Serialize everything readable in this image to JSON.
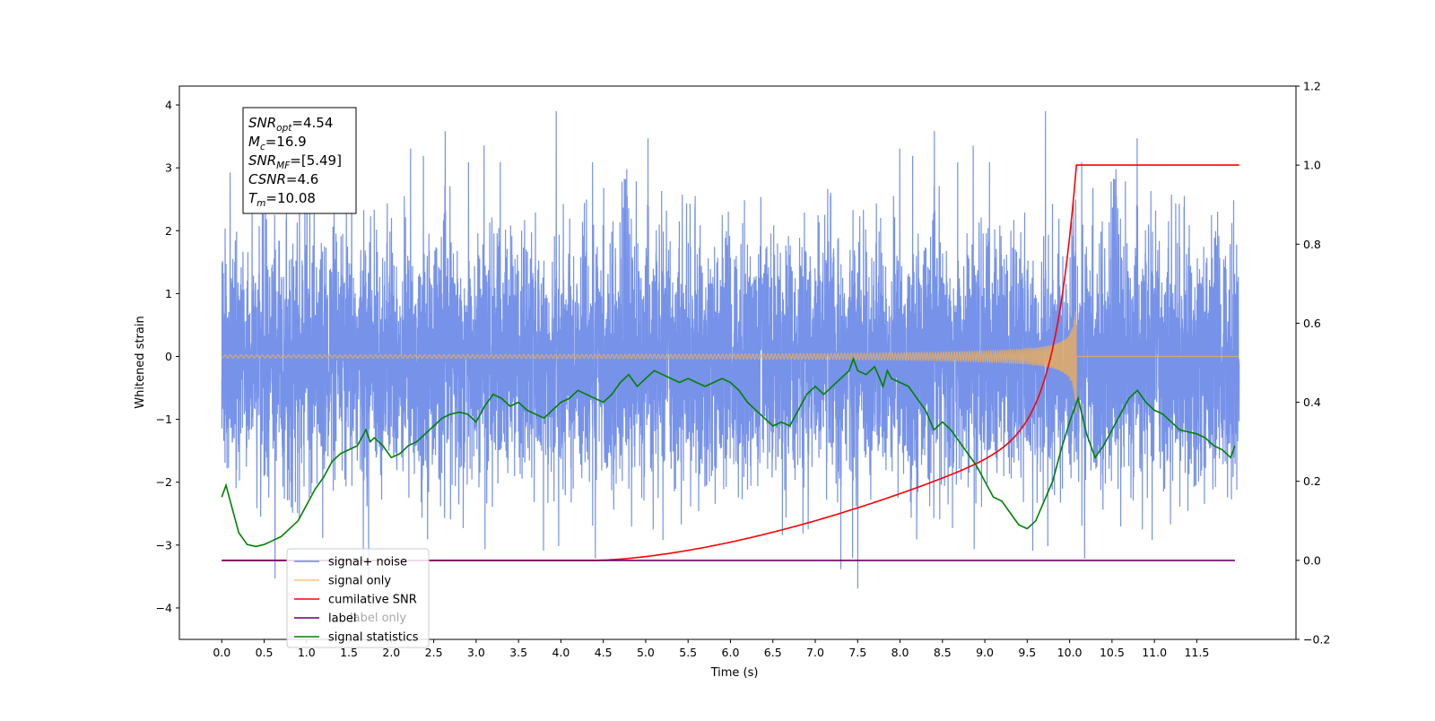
{
  "chart_data": {
    "type": "line",
    "xlabel": "Time (s)",
    "ylabel": "Whitened strain",
    "xlim": [
      -0.5,
      12.67
    ],
    "ylim": [
      -4.5,
      4.3
    ],
    "y2lim": [
      -0.2,
      1.2
    ],
    "x_ticks": [
      0.0,
      0.5,
      1.0,
      1.5,
      2.0,
      2.5,
      3.0,
      3.5,
      4.0,
      4.5,
      5.0,
      5.5,
      6.0,
      6.5,
      7.0,
      7.5,
      8.0,
      8.5,
      9.0,
      9.5,
      10.0,
      10.5,
      11.0,
      11.5
    ],
    "x_tick_labels": [
      "0.0",
      "0.5",
      "1.0",
      "1.5",
      "2.0",
      "2.5",
      "3.0",
      "3.5",
      "4.0",
      "4.5",
      "5.0",
      "5.5",
      "6.0",
      "6.5",
      "7.0",
      "7.5",
      "8.0",
      "8.5",
      "9.0",
      "9.5",
      "10.0",
      "10.5",
      "11.0",
      "11.5"
    ],
    "y_ticks": [
      -4,
      -3,
      -2,
      -1,
      0,
      1,
      2,
      3,
      4
    ],
    "y_tick_labels": [
      "−4",
      "−3",
      "−2",
      "−1",
      "0",
      "1",
      "2",
      "3",
      "4"
    ],
    "y2_ticks": [
      -0.2,
      0.0,
      0.2,
      0.4,
      0.6,
      0.8,
      1.0,
      1.2
    ],
    "y2_tick_labels": [
      "−0.2",
      "0.0",
      "0.2",
      "0.4",
      "0.6",
      "0.8",
      "1.0",
      "1.2"
    ],
    "grid": false,
    "legend_position": "lower-left",
    "series": [
      {
        "name": "signal+ noise",
        "axis": "left",
        "color": "#6f8ce8",
        "t_range": [
          0.0,
          12.0
        ],
        "approx_amplitude_range": [
          -4.1,
          3.9
        ],
        "description_values": {
          "typical_upper": 1.7,
          "typical_lower": -1.8
        }
      },
      {
        "name": "signal only",
        "axis": "left",
        "color": "#f5b050",
        "t_range": [
          0.0,
          12.0
        ],
        "chirp_end_time": 10.08,
        "peak_amplitude": 0.97
      },
      {
        "name": "cumilative SNR",
        "axis": "right",
        "color": "#ff0000",
        "x": [
          0.0,
          4.5,
          5.0,
          5.5,
          6.0,
          6.5,
          7.0,
          7.5,
          8.0,
          8.5,
          9.0,
          9.5,
          9.7,
          9.9,
          10.0,
          10.05,
          10.08,
          12.0
        ],
        "y": [
          0.0,
          0.0,
          0.002,
          0.01,
          0.03,
          0.06,
          0.09,
          0.12,
          0.155,
          0.2,
          0.26,
          0.37,
          0.45,
          0.58,
          0.72,
          0.85,
          1.0,
          1.0
        ]
      },
      {
        "name": "label",
        "axis": "right",
        "color": "#6a006a",
        "x": [
          0.0,
          11.95
        ],
        "y": [
          0.0,
          0.0
        ]
      },
      {
        "name": "label only",
        "axis": "right",
        "color": "#000000",
        "x": [],
        "y": []
      },
      {
        "name": "signal statistics",
        "axis": "right",
        "color": "#008000",
        "x": [
          0.0,
          0.05,
          0.1,
          0.2,
          0.3,
          0.4,
          0.5,
          0.6,
          0.7,
          0.8,
          0.9,
          1.0,
          1.1,
          1.2,
          1.3,
          1.4,
          1.5,
          1.6,
          1.7,
          1.75,
          1.8,
          1.9,
          2.0,
          2.1,
          2.2,
          2.3,
          2.4,
          2.5,
          2.6,
          2.7,
          2.8,
          2.9,
          3.0,
          3.1,
          3.2,
          3.3,
          3.4,
          3.5,
          3.6,
          3.7,
          3.8,
          3.9,
          4.0,
          4.1,
          4.2,
          4.3,
          4.4,
          4.5,
          4.6,
          4.7,
          4.8,
          4.9,
          5.0,
          5.1,
          5.2,
          5.3,
          5.4,
          5.5,
          5.6,
          5.7,
          5.8,
          5.9,
          6.0,
          6.1,
          6.2,
          6.3,
          6.4,
          6.5,
          6.6,
          6.7,
          6.8,
          6.9,
          7.0,
          7.1,
          7.2,
          7.3,
          7.4,
          7.45,
          7.5,
          7.6,
          7.7,
          7.8,
          7.85,
          7.9,
          8.0,
          8.1,
          8.2,
          8.3,
          8.4,
          8.5,
          8.6,
          8.7,
          8.8,
          8.9,
          9.0,
          9.1,
          9.2,
          9.3,
          9.4,
          9.5,
          9.6,
          9.7,
          9.8,
          9.9,
          10.0,
          10.1,
          10.2,
          10.3,
          10.4,
          10.5,
          10.6,
          10.7,
          10.8,
          10.9,
          11.0,
          11.1,
          11.2,
          11.3,
          11.4,
          11.5,
          11.6,
          11.7,
          11.8,
          11.9,
          11.95
        ],
        "y": [
          0.16,
          0.19,
          0.15,
          0.07,
          0.04,
          0.035,
          0.04,
          0.05,
          0.06,
          0.08,
          0.1,
          0.14,
          0.18,
          0.21,
          0.25,
          0.27,
          0.28,
          0.29,
          0.33,
          0.3,
          0.31,
          0.29,
          0.26,
          0.27,
          0.29,
          0.3,
          0.32,
          0.34,
          0.36,
          0.37,
          0.375,
          0.37,
          0.35,
          0.39,
          0.42,
          0.41,
          0.39,
          0.4,
          0.38,
          0.37,
          0.36,
          0.38,
          0.4,
          0.41,
          0.43,
          0.42,
          0.41,
          0.4,
          0.42,
          0.45,
          0.47,
          0.44,
          0.46,
          0.48,
          0.47,
          0.46,
          0.45,
          0.46,
          0.45,
          0.44,
          0.45,
          0.46,
          0.45,
          0.43,
          0.4,
          0.38,
          0.36,
          0.34,
          0.35,
          0.34,
          0.38,
          0.42,
          0.44,
          0.42,
          0.44,
          0.46,
          0.48,
          0.51,
          0.48,
          0.47,
          0.49,
          0.44,
          0.48,
          0.46,
          0.45,
          0.44,
          0.41,
          0.38,
          0.33,
          0.35,
          0.33,
          0.3,
          0.27,
          0.24,
          0.2,
          0.16,
          0.15,
          0.12,
          0.09,
          0.08,
          0.1,
          0.15,
          0.2,
          0.28,
          0.35,
          0.41,
          0.32,
          0.26,
          0.29,
          0.33,
          0.37,
          0.41,
          0.43,
          0.4,
          0.38,
          0.37,
          0.35,
          0.33,
          0.325,
          0.32,
          0.31,
          0.29,
          0.28,
          0.26,
          0.29
        ]
      }
    ],
    "annotation_box": [
      {
        "main": "SNR",
        "sub": "opt",
        "rest": "=4.54"
      },
      {
        "main": "M",
        "sub": "c",
        "rest": "=16.9"
      },
      {
        "main": "SNR",
        "sub": "MF",
        "rest": "=[5.49]"
      },
      {
        "main": "CSNR",
        "sub": "",
        "rest": "=4.6"
      },
      {
        "main": "T",
        "sub": "m",
        "rest": "=10.08"
      }
    ]
  }
}
